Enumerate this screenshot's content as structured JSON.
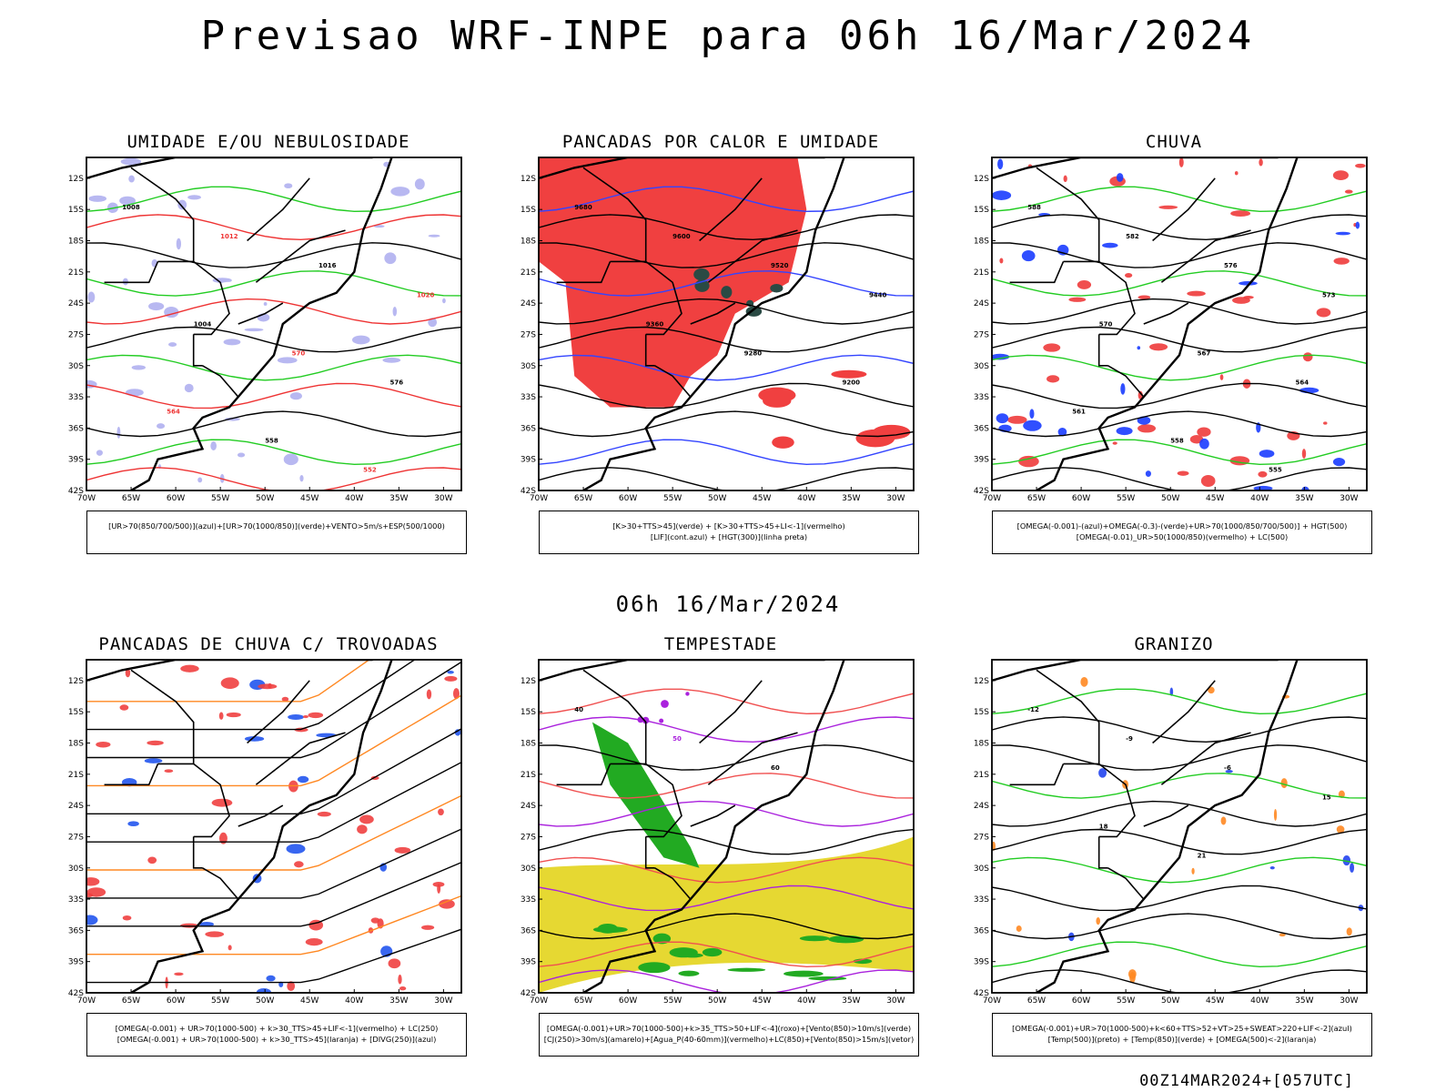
{
  "page": {
    "title": "Previsao WRF-INPE  para 06h 16/Mar/2024",
    "mid_date": "06h 16/Mar/2024",
    "run_id": "00Z14MAR2024+[057UTC]"
  },
  "chart_data": [
    {
      "type": "heatmap",
      "title": "UMIDADE E/OU NEBULOSIDADE",
      "legend": [
        "[UR>70(850/700/500)](azul)+[UR>70(1000/850)](verde)+VENTO>5m/s+ESP(500/1000)"
      ],
      "colors": {
        "fill1": "#b0b0f0",
        "fill2": "#ffffff",
        "line1": "#22cc22",
        "line2": "#ee3333",
        "line3": "#000000"
      },
      "x_ticks": [
        "70W",
        "65W",
        "60W",
        "55W",
        "50W",
        "45W",
        "40W",
        "35W",
        "30W"
      ],
      "y_ticks": [
        "12S",
        "15S",
        "18S",
        "21S",
        "24S",
        "27S",
        "30S",
        "33S",
        "36S",
        "39S",
        "42S"
      ],
      "xlim": [
        -70,
        -28
      ],
      "ylim": [
        -42,
        -10
      ],
      "contour_labels": [
        "1008",
        "1012",
        "1016",
        "1020",
        "1004",
        "570",
        "576",
        "564",
        "558",
        "552"
      ],
      "fill_mode": "blobs"
    },
    {
      "type": "heatmap",
      "title": "PANCADAS POR CALOR E UMIDADE",
      "legend": [
        "[K>30+TTS>45](verde) + [K>30+TTS>45+LI<-1](vermelho)",
        "[LIF](cont.azul) + [HGT(300)](linha preta)"
      ],
      "colors": {
        "fill1": "#f04040",
        "fill2": "#2a4a44",
        "line1": "#3344ff",
        "line2": "#000000",
        "line3": "#000000"
      },
      "x_ticks": [
        "70W",
        "65W",
        "60W",
        "55W",
        "50W",
        "45W",
        "40W",
        "35W",
        "30W"
      ],
      "y_ticks": [
        "12S",
        "15S",
        "18S",
        "21S",
        "24S",
        "27S",
        "30S",
        "33S",
        "36S",
        "39S",
        "42S"
      ],
      "xlim": [
        -70,
        -28
      ],
      "ylim": [
        -42,
        -10
      ],
      "contour_labels": [
        "9680",
        "9600",
        "9520",
        "9440",
        "9360",
        "9280",
        "9200"
      ],
      "fill_mode": "region"
    },
    {
      "type": "heatmap",
      "title": "CHUVA",
      "legend": [
        "[OMEGA(-0.001)-(azul)+OMEGA(-0.3)-(verde)+UR>70(1000/850/700/500)] + HGT(500)",
        "[OMEGA(-0.01)_UR>50(1000/850)(vermelho) + LC(500)"
      ],
      "colors": {
        "fill1": "#ee3b3b",
        "fill2": "#1a3cff",
        "line1": "#22cc22",
        "line2": "#000000",
        "line3": "#000000"
      },
      "x_ticks": [
        "70W",
        "65W",
        "60W",
        "55W",
        "50W",
        "45W",
        "40W",
        "35W",
        "30W"
      ],
      "y_ticks": [
        "12S",
        "15S",
        "18S",
        "21S",
        "24S",
        "27S",
        "30S",
        "33S",
        "36S",
        "39S",
        "42S"
      ],
      "xlim": [
        -70,
        -28
      ],
      "ylim": [
        -42,
        -10
      ],
      "contour_labels": [
        "588",
        "582",
        "576",
        "573",
        "570",
        "567",
        "564",
        "561",
        "558",
        "555"
      ],
      "fill_mode": "blobs"
    },
    {
      "type": "heatmap",
      "title": "PANCADAS DE CHUVA C/ TROVOADAS",
      "legend": [
        "[OMEGA(-0.001) + UR>70(1000-500) + k>30_TTS>45+LIF<-1](vermelho) + LC(250)",
        "[OMEGA(-0.001) + UR>70(1000-500) + k>30_TTS>45](laranja) + [DIVG(250)](azul)"
      ],
      "colors": {
        "fill1": "#f04040",
        "fill2": "#2255ee",
        "line1": "#ff8822",
        "line2": "#000000",
        "line3": "#000000"
      },
      "x_ticks": [
        "70W",
        "65W",
        "60W",
        "55W",
        "50W",
        "45W",
        "40W",
        "35W",
        "30W"
      ],
      "y_ticks": [
        "12S",
        "15S",
        "18S",
        "21S",
        "24S",
        "27S",
        "30S",
        "33S",
        "36S",
        "39S",
        "42S"
      ],
      "xlim": [
        -70,
        -28
      ],
      "ylim": [
        -42,
        -10
      ],
      "contour_labels": [],
      "fill_mode": "blobs"
    },
    {
      "type": "heatmap",
      "title": "TEMPESTADE",
      "legend": [
        "[OMEGA(-0.001)+UR>70(1000-500)+k>35_TTS>50+LIF<-4](roxo)+[Vento(850)>10m/s](verde)",
        "[CJ(250)>30m/s](amarelo)+[Agua_P(40-60mm)](vermelho)+LC(850)+[Vento(850)>15m/s](vetor)"
      ],
      "colors": {
        "fill1": "#e6d832",
        "fill2": "#22aa22",
        "line1": "#f05050",
        "line2": "#aa22dd",
        "line3": "#000000"
      },
      "x_ticks": [
        "70W",
        "65W",
        "60W",
        "55W",
        "50W",
        "45W",
        "40W",
        "35W",
        "30W"
      ],
      "y_ticks": [
        "12S",
        "15S",
        "18S",
        "21S",
        "24S",
        "27S",
        "30S",
        "33S",
        "36S",
        "39S",
        "42S"
      ],
      "xlim": [
        -70,
        -28
      ],
      "ylim": [
        -42,
        -10
      ],
      "contour_labels": [
        "40",
        "50",
        "60"
      ],
      "fill_mode": "jet"
    },
    {
      "type": "heatmap",
      "title": "GRANIZO",
      "legend": [
        "[OMEGA(-0.001)+UR>70(1000-500)+k<60+TTS>52+VT>25+SWEAT>220+LIF<-2](azul)",
        "[Temp(500)](preto) + [Temp(850)](verde) + [OMEGA(500)<-2](laranja)"
      ],
      "colors": {
        "fill1": "#ff8822",
        "fill2": "#2244ee",
        "line1": "#22cc22",
        "line2": "#000000",
        "line3": "#000000"
      },
      "x_ticks": [
        "70W",
        "65W",
        "60W",
        "55W",
        "50W",
        "45W",
        "40W",
        "35W",
        "30W"
      ],
      "y_ticks": [
        "12S",
        "15S",
        "18S",
        "21S",
        "24S",
        "27S",
        "30S",
        "33S",
        "36S",
        "39S",
        "42S"
      ],
      "xlim": [
        -70,
        -28
      ],
      "ylim": [
        -42,
        -10
      ],
      "contour_labels": [
        "-12",
        "-9",
        "-6",
        "15",
        "18",
        "21"
      ],
      "fill_mode": "sparse"
    }
  ]
}
